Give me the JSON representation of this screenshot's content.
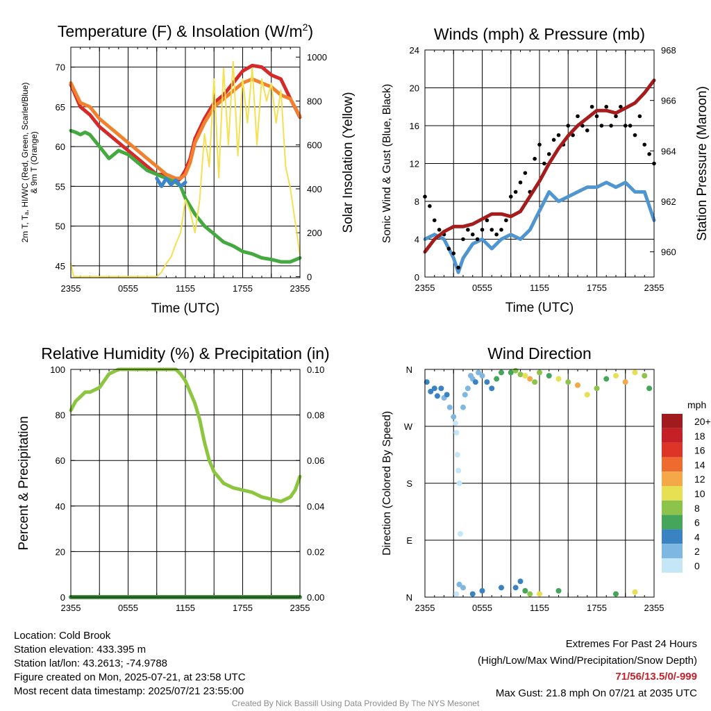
{
  "chart_data": [
    {
      "type": "line",
      "title": "Temperature (F) & Insolation (W/m²)",
      "xlabel": "Time (UTC)",
      "ylabel_left_lines": [
        "2m T, Tₐ, HI/WC (Red, Green, Scarlet/Blue)",
        "& 9m T (Orange)"
      ],
      "ylabel_right": "Solar Insolation (Yellow)",
      "x_ticks": [
        "2355",
        "0555",
        "1155",
        "1755",
        "2355"
      ],
      "ylim": [
        43.5,
        72.5
      ],
      "y_ticks": [
        45,
        50,
        55,
        60,
        65,
        70
      ],
      "y2lim": [
        -5,
        1045
      ],
      "y2_ticks": [
        0,
        200,
        400,
        600,
        800,
        1000
      ],
      "x_hours": [
        0,
        24
      ],
      "grid": true,
      "series": [
        {
          "role": "2m T",
          "color": "#d62a2a",
          "axis": "left",
          "x": [
            0,
            1,
            2,
            3,
            4,
            5,
            6,
            7,
            8,
            9,
            9.5,
            10,
            11,
            11.5,
            12,
            12.5,
            13,
            14,
            15,
            16,
            17,
            18,
            19,
            20,
            21,
            22,
            23,
            24
          ],
          "y": [
            67.8,
            65,
            64,
            62.5,
            61.5,
            60.5,
            59.5,
            58.5,
            57.5,
            56.5,
            56.5,
            56,
            55.5,
            56,
            57,
            58.5,
            61,
            63.5,
            65.5,
            66.5,
            68,
            69.5,
            70.2,
            70,
            69,
            68.5,
            66,
            63.7
          ]
        },
        {
          "role": "9m T",
          "color": "#f2812f",
          "axis": "left",
          "x": [
            0,
            1,
            2,
            3,
            4,
            5,
            6,
            7,
            8,
            9,
            9.5,
            10,
            11,
            11.5,
            12,
            12.5,
            13,
            14,
            15,
            16,
            17,
            18,
            19,
            20,
            21,
            22,
            23,
            24
          ],
          "y": [
            68,
            65.5,
            65,
            63.5,
            62.5,
            61.5,
            60.5,
            59.5,
            58.5,
            57.5,
            57,
            56.5,
            56,
            56,
            56.5,
            58,
            60.5,
            63,
            65,
            66,
            67,
            68,
            68.5,
            68,
            67.5,
            66.5,
            66,
            63.8
          ]
        },
        {
          "role": "2m Td",
          "color": "#44aa3f",
          "axis": "left",
          "x": [
            0,
            0.5,
            1,
            1.5,
            2,
            3,
            4,
            5,
            6,
            7,
            8,
            9,
            10,
            11,
            11.5,
            12,
            13,
            14,
            15,
            16,
            17,
            18,
            19,
            20,
            21,
            22,
            23,
            24
          ],
          "y": [
            62,
            61.8,
            61.5,
            61.8,
            61.5,
            60,
            58.5,
            59.5,
            59,
            58,
            57,
            56.5,
            56,
            55.5,
            55,
            53.5,
            51.5,
            50,
            49,
            48,
            47.5,
            46.8,
            46.5,
            46,
            45.8,
            45.5,
            45.5,
            46
          ]
        },
        {
          "role": "WC",
          "color": "#3a86c8",
          "axis": "left",
          "x": [
            9,
            9.5,
            10,
            10.5,
            11,
            11.5,
            12
          ],
          "y": [
            56,
            55,
            56,
            55.2,
            55.8,
            55,
            55.5
          ]
        },
        {
          "role": "Insolation",
          "color": "#f5e050",
          "axis": "right",
          "x": [
            0,
            0.3,
            1,
            9,
            9.5,
            10,
            10.5,
            11,
            11.5,
            12,
            12.5,
            13,
            13.5,
            14,
            14.5,
            15,
            15.5,
            16,
            16.5,
            17,
            17.5,
            18,
            18.5,
            19,
            19.5,
            20,
            20.5,
            21,
            21.5,
            22,
            22.5,
            23,
            23.5,
            24
          ],
          "y": [
            60,
            0,
            0,
            0,
            20,
            60,
            90,
            150,
            200,
            350,
            300,
            200,
            350,
            650,
            500,
            900,
            450,
            950,
            600,
            980,
            550,
            900,
            700,
            950,
            600,
            900,
            800,
            880,
            700,
            850,
            500,
            400,
            250,
            100
          ]
        }
      ]
    },
    {
      "type": "line",
      "title": "Winds (mph) & Pressure (mb)",
      "xlabel": "Time (UTC)",
      "ylabel_left": "Sonic Wind & Gust (Blue, Black)",
      "ylabel_right": "Station Pressure (Maroon)",
      "x_ticks": [
        "2355",
        "0555",
        "1155",
        "1755",
        "2355"
      ],
      "ylim": [
        0,
        24
      ],
      "y_ticks": [
        0,
        4,
        8,
        12,
        16,
        20,
        24
      ],
      "y2lim": [
        959,
        968
      ],
      "y2_ticks": [
        960,
        962,
        964,
        966,
        968
      ],
      "x_hours": [
        0,
        24
      ],
      "grid": true,
      "series": [
        {
          "role": "Sonic Wind",
          "color": "#4f95d0",
          "axis": "left",
          "x": [
            0,
            1,
            2,
            3,
            3.5,
            4,
            5,
            6,
            7,
            8,
            9,
            10,
            11,
            12,
            12.5,
            13,
            14,
            15,
            16,
            17,
            18,
            19,
            20,
            21,
            22,
            23,
            24
          ],
          "y": [
            4,
            4.5,
            4,
            2,
            0.5,
            2,
            3.5,
            4,
            3,
            4,
            4.5,
            4,
            5,
            7,
            8,
            9,
            8,
            8.5,
            9,
            9.5,
            9.5,
            10,
            9.5,
            10,
            9,
            9,
            6
          ]
        },
        {
          "role": "Gust",
          "color": "#000000",
          "axis": "left",
          "mode": "markers",
          "x": [
            0,
            0.5,
            1,
            1.5,
            2,
            2.5,
            3,
            3.5,
            4,
            4.5,
            5,
            5.5,
            6,
            6.5,
            7,
            7.5,
            8,
            8.5,
            9,
            9.5,
            10,
            10.5,
            11,
            11.5,
            12,
            12.5,
            13,
            13.5,
            14,
            14.5,
            15,
            15.5,
            16,
            16.5,
            17,
            17.5,
            18,
            18.5,
            19,
            19.5,
            20,
            20.5,
            21,
            21.5,
            22,
            22.5,
            23,
            23.5,
            24
          ],
          "y": [
            8.5,
            7.5,
            6,
            5,
            4.5,
            3,
            2.5,
            1,
            4,
            5,
            4.5,
            4,
            5,
            6,
            5,
            4.5,
            5,
            6,
            8.5,
            9,
            10,
            11,
            9,
            12.5,
            14,
            12,
            13,
            14.5,
            15,
            14,
            16,
            15,
            17,
            16,
            15.5,
            18,
            17,
            16,
            18,
            16,
            17,
            18,
            16,
            16,
            15,
            17,
            14,
            13,
            12
          ]
        },
        {
          "role": "Station Pressure",
          "color": "#a51c1c",
          "axis": "right",
          "x": [
            0,
            1,
            2,
            3,
            4,
            5,
            6,
            7,
            8,
            9,
            10,
            11,
            12,
            13,
            14,
            15,
            16,
            17,
            18,
            19,
            20,
            21,
            22,
            23,
            24
          ],
          "y": [
            960,
            960.5,
            960.8,
            961,
            961,
            961.1,
            961.3,
            961.5,
            961.5,
            961.4,
            961.6,
            962.2,
            962.8,
            963.5,
            964.1,
            964.6,
            965,
            965.3,
            965.6,
            965.6,
            965.5,
            965.7,
            965.9,
            966.3,
            966.8
          ]
        }
      ]
    },
    {
      "type": "line",
      "title": "Relative Humidity (%) & Precipitation (in)",
      "xlabel": "",
      "ylabel_left": "Percent & Precipitation",
      "x_ticks": [
        "2355",
        "0555",
        "1155",
        "1755",
        "2355"
      ],
      "ylim": [
        0,
        100
      ],
      "y_ticks": [
        0,
        20,
        40,
        60,
        80,
        100
      ],
      "y2lim": [
        0,
        0.1
      ],
      "y2_ticks": [
        "0.00",
        "0.02",
        "0.04",
        "0.06",
        "0.08",
        "0.10"
      ],
      "x_hours": [
        0,
        24
      ],
      "grid": true,
      "series": [
        {
          "role": "Relative Humidity",
          "color": "#8cc63f",
          "axis": "left",
          "x": [
            0,
            0.5,
            1,
            1.5,
            2,
            2.5,
            3,
            3.5,
            4,
            5,
            6,
            7,
            8,
            9,
            10,
            11,
            11.5,
            12,
            12.5,
            13,
            13.5,
            14,
            14.5,
            15,
            16,
            17,
            18,
            19,
            20,
            21,
            22,
            23,
            23.5,
            24
          ],
          "y": [
            82,
            86,
            88,
            90,
            90,
            91,
            92,
            95,
            98,
            100,
            100,
            100,
            100,
            100,
            100,
            100,
            98,
            95,
            90,
            85,
            78,
            68,
            60,
            55,
            50,
            48,
            47,
            46,
            44,
            43,
            42,
            44,
            47,
            53
          ]
        },
        {
          "role": "Precipitation",
          "color": "#3f8f3a",
          "axis": "right",
          "x": [
            0,
            24
          ],
          "y": [
            0,
            0
          ]
        }
      ]
    },
    {
      "type": "scatter",
      "title": "Wind Direction",
      "ylabel": "Direction (Colored By Speed)",
      "x_ticks": [
        "2355",
        "0555",
        "1155",
        "1755",
        "2355"
      ],
      "y_ticks": [
        "N",
        "E",
        "S",
        "W",
        "N"
      ],
      "ylim": [
        0,
        360
      ],
      "x_hours": [
        0,
        24
      ],
      "grid": true,
      "legend_title": "mph",
      "legend_labels": [
        "20+",
        "18",
        "16",
        "14",
        "12",
        "10",
        "8",
        "6",
        "4",
        "2",
        "0"
      ],
      "legend_colors": [
        "#a11a1e",
        "#c52025",
        "#de3327",
        "#ef6a2e",
        "#f5a84a",
        "#e6e052",
        "#8cc34a",
        "#45a55a",
        "#3a83c2",
        "#7eb8e2",
        "#c5e6f7"
      ],
      "legend_placement": "right",
      "series": [
        {
          "role": "Wind Direction",
          "mode": "markers",
          "x": [
            0.2,
            0.6,
            1,
            1.3,
            1.7,
            2,
            2.3,
            2.6,
            3,
            3.2,
            3.3,
            3.4,
            3.5,
            3.6,
            3.7,
            4,
            4.2,
            4.5,
            4.8,
            5,
            5.3,
            5.6,
            6,
            6.5,
            7,
            7.5,
            8,
            9,
            9.5,
            10,
            10.5,
            11,
            11.5,
            12,
            13,
            14,
            15,
            16,
            17,
            18,
            19,
            20,
            21,
            22,
            23,
            23.5,
            3.3,
            3.6,
            4,
            5,
            6,
            8,
            9.5,
            10,
            10.5,
            11,
            12,
            14,
            20,
            22
          ],
          "y": [
            340,
            325,
            330,
            318,
            330,
            315,
            320,
            300,
            285,
            275,
            260,
            225,
            200,
            180,
            100,
            300,
            320,
            330,
            350,
            345,
            340,
            355,
            350,
            340,
            330,
            345,
            355,
            355,
            358,
            352,
            350,
            345,
            340,
            355,
            350,
            345,
            340,
            335,
            320,
            330,
            345,
            350,
            340,
            355,
            350,
            330,
            5,
            20,
            15,
            5,
            10,
            15,
            15,
            25,
            10,
            5,
            5,
            10,
            5,
            8
          ],
          "speed": [
            4,
            4,
            4,
            4,
            4,
            2,
            4,
            2,
            2,
            0,
            0,
            0,
            0,
            0,
            0,
            2,
            2,
            2,
            2,
            2,
            4,
            2,
            2,
            4,
            4,
            6,
            6,
            6,
            8,
            8,
            10,
            12,
            8,
            8,
            6,
            10,
            8,
            12,
            10,
            8,
            6,
            10,
            12,
            10,
            8,
            6,
            0,
            2,
            2,
            4,
            4,
            4,
            4,
            4,
            6,
            8,
            10,
            6,
            6,
            10
          ]
        }
      ]
    }
  ],
  "info": {
    "location": "Location: Cold Brook",
    "elevation": "Station elevation: 433.395 m",
    "latlon": "Station lat/lon: 43.2613; -74.9788",
    "created": "Figure created on Mon, 2025-07-21, at 23:58 UTC",
    "recent": "Most recent data timestamp: 2025/07/21 23:55:00"
  },
  "extremes": {
    "title": "Extremes For Past 24 Hours",
    "subtitle": "(High/Low/Max Wind/Precipitation/Snow Depth)",
    "values": "71/56/13.5/0/-999",
    "max_gust": "Max Gust: 21.8 mph On 07/21 at 2035 UTC"
  },
  "credit": "Created By Nick Bassill Using Data Provided By The NYS Mesonet"
}
